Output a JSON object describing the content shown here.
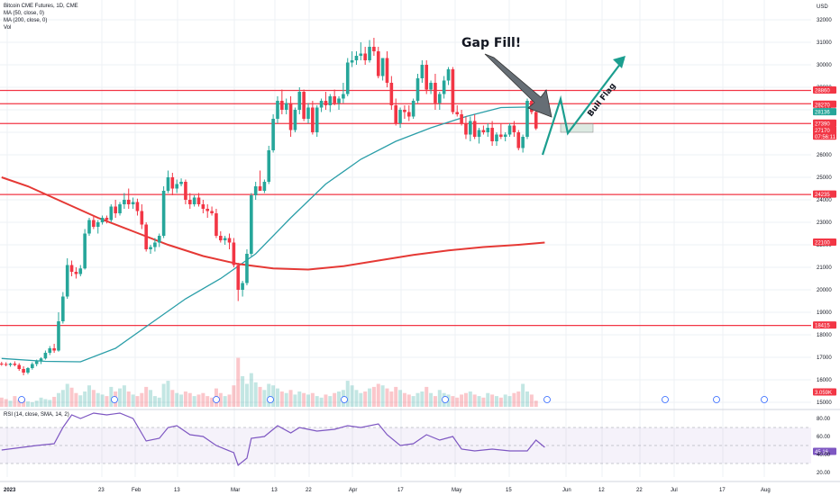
{
  "legend": {
    "symbol": "Bitcoin CME Futures, 1D, CME",
    "ma50": "MA (50, close, 0)",
    "ma200": "MA (200, close, 0)",
    "vol": "Vol",
    "rsi": "RSI (14, close, SMA, 14, 2)"
  },
  "axis": {
    "currency": "USD",
    "price_ticks": [
      "32000",
      "31000",
      "30000",
      "29000",
      "28000",
      "27000",
      "26000",
      "25000",
      "24000",
      "23000",
      "22000",
      "21000",
      "20000",
      "19000",
      "18000",
      "17000",
      "16000",
      "15000"
    ],
    "rsi_ticks": [
      "80.00",
      "60.00",
      "40.00",
      "20.00"
    ],
    "date_ticks": [
      "2023",
      "23",
      "Feb",
      "13",
      "Mar",
      "13",
      "22",
      "Apr",
      "17",
      "May",
      "15",
      "Jun",
      "12",
      "22",
      "Jul",
      "17",
      "Aug"
    ]
  },
  "price_tags": [
    {
      "label": "28860",
      "color": "#f23645"
    },
    {
      "label": "28270",
      "color": "#f23645"
    },
    {
      "label": "28136",
      "color": "#26a69a"
    },
    {
      "label": "27390",
      "color": "#f23645"
    },
    {
      "label": "27170",
      "color": "#f23645"
    },
    {
      "label": "07:56:11",
      "color": "#f23645"
    },
    {
      "label": "24235",
      "color": "#f23645"
    },
    {
      "label": "22100",
      "color": "#f23645"
    },
    {
      "label": "18415",
      "color": "#f23645"
    },
    {
      "label": "3.059K",
      "color": "#f23645"
    },
    {
      "label": "45.16",
      "color": "#7e57c2"
    }
  ],
  "annotations": {
    "gap_fill": "Gap Fill!",
    "bull_flag": "Bull Flag"
  },
  "chart_data": {
    "type": "candlestick",
    "title": "Bitcoin CME Futures, 1D, CME",
    "ylim": [
      15000,
      32600
    ],
    "horizontal_levels": [
      28860,
      28270,
      27390,
      24235,
      18415
    ],
    "candles": [
      {
        "o": 16720,
        "h": 16800,
        "l": 16620,
        "c": 16700
      },
      {
        "o": 16700,
        "h": 16780,
        "l": 16600,
        "c": 16660
      },
      {
        "o": 16660,
        "h": 16760,
        "l": 16580,
        "c": 16720
      },
      {
        "o": 16720,
        "h": 16820,
        "l": 16600,
        "c": 16660
      },
      {
        "o": 16660,
        "h": 16740,
        "l": 16400,
        "c": 16480
      },
      {
        "o": 16480,
        "h": 16600,
        "l": 16200,
        "c": 16320
      },
      {
        "o": 16320,
        "h": 16560,
        "l": 16250,
        "c": 16520
      },
      {
        "o": 16520,
        "h": 16780,
        "l": 16450,
        "c": 16700
      },
      {
        "o": 16700,
        "h": 16900,
        "l": 16600,
        "c": 16820
      },
      {
        "o": 16820,
        "h": 17000,
        "l": 16700,
        "c": 16950
      },
      {
        "o": 16950,
        "h": 17300,
        "l": 16900,
        "c": 17200
      },
      {
        "o": 17200,
        "h": 17500,
        "l": 17100,
        "c": 17400
      },
      {
        "o": 17400,
        "h": 17600,
        "l": 17200,
        "c": 17300
      },
      {
        "o": 17300,
        "h": 19000,
        "l": 17250,
        "c": 18600
      },
      {
        "o": 18600,
        "h": 19900,
        "l": 18500,
        "c": 19700
      },
      {
        "o": 19700,
        "h": 21400,
        "l": 19600,
        "c": 21100
      },
      {
        "o": 21100,
        "h": 21300,
        "l": 20600,
        "c": 20800
      },
      {
        "o": 20800,
        "h": 21000,
        "l": 20500,
        "c": 20700
      },
      {
        "o": 20700,
        "h": 21100,
        "l": 20600,
        "c": 20950
      },
      {
        "o": 20950,
        "h": 22700,
        "l": 20900,
        "c": 22500
      },
      {
        "o": 22500,
        "h": 23200,
        "l": 22400,
        "c": 23100
      },
      {
        "o": 23100,
        "h": 23300,
        "l": 22700,
        "c": 22800
      },
      {
        "o": 22800,
        "h": 23100,
        "l": 22500,
        "c": 23000
      },
      {
        "o": 23000,
        "h": 23300,
        "l": 22900,
        "c": 23200
      },
      {
        "o": 23200,
        "h": 23300,
        "l": 22950,
        "c": 23100
      },
      {
        "o": 23100,
        "h": 23800,
        "l": 23000,
        "c": 23700
      },
      {
        "o": 23700,
        "h": 24000,
        "l": 23200,
        "c": 23400
      },
      {
        "o": 23400,
        "h": 23900,
        "l": 23300,
        "c": 23800
      },
      {
        "o": 23800,
        "h": 24300,
        "l": 23600,
        "c": 24000
      },
      {
        "o": 24000,
        "h": 24500,
        "l": 23600,
        "c": 23800
      },
      {
        "o": 23800,
        "h": 24100,
        "l": 23600,
        "c": 23900
      },
      {
        "o": 23900,
        "h": 24050,
        "l": 23300,
        "c": 23500
      },
      {
        "o": 23500,
        "h": 23800,
        "l": 22700,
        "c": 22900
      },
      {
        "o": 22900,
        "h": 23000,
        "l": 21700,
        "c": 21800
      },
      {
        "o": 21800,
        "h": 22000,
        "l": 21600,
        "c": 21900
      },
      {
        "o": 21900,
        "h": 22300,
        "l": 21700,
        "c": 22100
      },
      {
        "o": 22100,
        "h": 22500,
        "l": 21900,
        "c": 22400
      },
      {
        "o": 22400,
        "h": 24600,
        "l": 22300,
        "c": 24400
      },
      {
        "o": 24400,
        "h": 25300,
        "l": 24300,
        "c": 25000
      },
      {
        "o": 25000,
        "h": 25200,
        "l": 24200,
        "c": 24500
      },
      {
        "o": 24500,
        "h": 24900,
        "l": 24300,
        "c": 24700
      },
      {
        "o": 24700,
        "h": 24950,
        "l": 24600,
        "c": 24800
      },
      {
        "o": 24800,
        "h": 24900,
        "l": 23800,
        "c": 24000
      },
      {
        "o": 24000,
        "h": 24300,
        "l": 23600,
        "c": 23800
      },
      {
        "o": 23800,
        "h": 24200,
        "l": 23700,
        "c": 24100
      },
      {
        "o": 24100,
        "h": 24300,
        "l": 23700,
        "c": 23800
      },
      {
        "o": 23800,
        "h": 24000,
        "l": 23400,
        "c": 23600
      },
      {
        "o": 23600,
        "h": 23800,
        "l": 23200,
        "c": 23500
      },
      {
        "o": 23500,
        "h": 23700,
        "l": 23300,
        "c": 23400
      },
      {
        "o": 23400,
        "h": 23600,
        "l": 22300,
        "c": 22400
      },
      {
        "o": 22400,
        "h": 22600,
        "l": 22100,
        "c": 22200
      },
      {
        "o": 22200,
        "h": 22400,
        "l": 22000,
        "c": 22300
      },
      {
        "o": 22300,
        "h": 22500,
        "l": 21800,
        "c": 22100
      },
      {
        "o": 22100,
        "h": 22300,
        "l": 21000,
        "c": 21100
      },
      {
        "o": 21100,
        "h": 21200,
        "l": 19500,
        "c": 20000
      },
      {
        "o": 20000,
        "h": 20400,
        "l": 19700,
        "c": 20300
      },
      {
        "o": 20300,
        "h": 21800,
        "l": 20200,
        "c": 21600
      },
      {
        "o": 21600,
        "h": 24300,
        "l": 21500,
        "c": 24200
      },
      {
        "o": 24200,
        "h": 24800,
        "l": 24000,
        "c": 24600
      },
      {
        "o": 24600,
        "h": 25300,
        "l": 24400,
        "c": 24400
      },
      {
        "o": 24400,
        "h": 24900,
        "l": 24300,
        "c": 24800
      },
      {
        "o": 24800,
        "h": 26400,
        "l": 24700,
        "c": 26200
      },
      {
        "o": 26200,
        "h": 27800,
        "l": 26100,
        "c": 27600
      },
      {
        "o": 27600,
        "h": 28600,
        "l": 27400,
        "c": 28400
      },
      {
        "o": 28400,
        "h": 28900,
        "l": 27800,
        "c": 28000
      },
      {
        "o": 28000,
        "h": 28500,
        "l": 27800,
        "c": 28300
      },
      {
        "o": 28300,
        "h": 28600,
        "l": 26800,
        "c": 27100
      },
      {
        "o": 27100,
        "h": 28100,
        "l": 27000,
        "c": 28000
      },
      {
        "o": 28000,
        "h": 29000,
        "l": 27800,
        "c": 28800
      },
      {
        "o": 28800,
        "h": 28900,
        "l": 27500,
        "c": 27600
      },
      {
        "o": 27600,
        "h": 28300,
        "l": 27400,
        "c": 28100
      },
      {
        "o": 28100,
        "h": 28400,
        "l": 26900,
        "c": 27000
      },
      {
        "o": 27000,
        "h": 28200,
        "l": 26800,
        "c": 28100
      },
      {
        "o": 28100,
        "h": 28500,
        "l": 27900,
        "c": 28400
      },
      {
        "o": 28400,
        "h": 28800,
        "l": 28000,
        "c": 28200
      },
      {
        "o": 28200,
        "h": 28700,
        "l": 27900,
        "c": 28600
      },
      {
        "o": 28600,
        "h": 28900,
        "l": 28200,
        "c": 28300
      },
      {
        "o": 28300,
        "h": 28600,
        "l": 28000,
        "c": 28500
      },
      {
        "o": 28500,
        "h": 29200,
        "l": 28300,
        "c": 28700
      },
      {
        "o": 28700,
        "h": 30300,
        "l": 28600,
        "c": 30100
      },
      {
        "o": 30100,
        "h": 30600,
        "l": 29900,
        "c": 30200
      },
      {
        "o": 30200,
        "h": 30600,
        "l": 30000,
        "c": 30400
      },
      {
        "o": 30400,
        "h": 31000,
        "l": 30200,
        "c": 30500
      },
      {
        "o": 30500,
        "h": 30800,
        "l": 30000,
        "c": 30200
      },
      {
        "o": 30200,
        "h": 31100,
        "l": 30100,
        "c": 30800
      },
      {
        "o": 30800,
        "h": 31200,
        "l": 30400,
        "c": 30600
      },
      {
        "o": 30600,
        "h": 30800,
        "l": 29400,
        "c": 29500
      },
      {
        "o": 29500,
        "h": 30300,
        "l": 29300,
        "c": 30300
      },
      {
        "o": 30300,
        "h": 30600,
        "l": 29000,
        "c": 29200
      },
      {
        "o": 29200,
        "h": 29500,
        "l": 28000,
        "c": 28200
      },
      {
        "o": 28200,
        "h": 28500,
        "l": 27300,
        "c": 27400
      },
      {
        "o": 27400,
        "h": 28100,
        "l": 27200,
        "c": 28000
      },
      {
        "o": 28000,
        "h": 28200,
        "l": 27600,
        "c": 27900
      },
      {
        "o": 27900,
        "h": 28200,
        "l": 27500,
        "c": 27700
      },
      {
        "o": 27700,
        "h": 28500,
        "l": 27600,
        "c": 28400
      },
      {
        "o": 28400,
        "h": 29600,
        "l": 28300,
        "c": 29400
      },
      {
        "o": 29400,
        "h": 30200,
        "l": 29200,
        "c": 30000
      },
      {
        "o": 30000,
        "h": 30200,
        "l": 28700,
        "c": 28900
      },
      {
        "o": 28900,
        "h": 29300,
        "l": 28700,
        "c": 29200
      },
      {
        "o": 29200,
        "h": 29600,
        "l": 28000,
        "c": 28300
      },
      {
        "o": 28300,
        "h": 28800,
        "l": 28000,
        "c": 28700
      },
      {
        "o": 28700,
        "h": 29500,
        "l": 28500,
        "c": 29300
      },
      {
        "o": 29300,
        "h": 29900,
        "l": 29100,
        "c": 29800
      },
      {
        "o": 29800,
        "h": 29900,
        "l": 27800,
        "c": 27900
      },
      {
        "o": 27900,
        "h": 28200,
        "l": 27700,
        "c": 27800
      },
      {
        "o": 27800,
        "h": 28000,
        "l": 27300,
        "c": 27400
      },
      {
        "o": 27400,
        "h": 27700,
        "l": 26700,
        "c": 26900
      },
      {
        "o": 26900,
        "h": 27700,
        "l": 26600,
        "c": 27500
      },
      {
        "o": 27500,
        "h": 27800,
        "l": 26700,
        "c": 26800
      },
      {
        "o": 26800,
        "h": 27200,
        "l": 26500,
        "c": 27100
      },
      {
        "o": 27100,
        "h": 27300,
        "l": 26900,
        "c": 27000
      },
      {
        "o": 27000,
        "h": 27400,
        "l": 26800,
        "c": 27200
      },
      {
        "o": 27200,
        "h": 27500,
        "l": 26400,
        "c": 26600
      },
      {
        "o": 26600,
        "h": 27000,
        "l": 26400,
        "c": 26900
      },
      {
        "o": 26900,
        "h": 27400,
        "l": 26700,
        "c": 26800
      },
      {
        "o": 26800,
        "h": 27000,
        "l": 26600,
        "c": 26900
      },
      {
        "o": 26900,
        "h": 27400,
        "l": 26800,
        "c": 27300
      },
      {
        "o": 27300,
        "h": 27500,
        "l": 26800,
        "c": 27000
      },
      {
        "o": 27000,
        "h": 27100,
        "l": 26200,
        "c": 26300
      },
      {
        "o": 26300,
        "h": 26900,
        "l": 26100,
        "c": 26800
      },
      {
        "o": 26800,
        "h": 28500,
        "l": 26700,
        "c": 28400
      },
      {
        "o": 28400,
        "h": 28700,
        "l": 27800,
        "c": 27900
      },
      {
        "o": 27900,
        "h": 28100,
        "l": 27100,
        "c": 27170
      }
    ],
    "ma50": [
      {
        "i": 0,
        "v": 16950
      },
      {
        "i": 10,
        "v": 16820
      },
      {
        "i": 18,
        "v": 16800
      },
      {
        "i": 26,
        "v": 17400
      },
      {
        "i": 34,
        "v": 18500
      },
      {
        "i": 42,
        "v": 19600
      },
      {
        "i": 50,
        "v": 20500
      },
      {
        "i": 58,
        "v": 21600
      },
      {
        "i": 66,
        "v": 23200
      },
      {
        "i": 74,
        "v": 24700
      },
      {
        "i": 82,
        "v": 25800
      },
      {
        "i": 90,
        "v": 26600
      },
      {
        "i": 98,
        "v": 27200
      },
      {
        "i": 106,
        "v": 27700
      },
      {
        "i": 114,
        "v": 28100
      },
      {
        "i": 124,
        "v": 28136
      }
    ],
    "ma200": [
      {
        "i": 0,
        "v": 25000
      },
      {
        "i": 6,
        "v": 24600
      },
      {
        "i": 14,
        "v": 23900
      },
      {
        "i": 22,
        "v": 23200
      },
      {
        "i": 30,
        "v": 22600
      },
      {
        "i": 38,
        "v": 22000
      },
      {
        "i": 46,
        "v": 21500
      },
      {
        "i": 54,
        "v": 21150
      },
      {
        "i": 62,
        "v": 20950
      },
      {
        "i": 70,
        "v": 20900
      },
      {
        "i": 78,
        "v": 21050
      },
      {
        "i": 86,
        "v": 21300
      },
      {
        "i": 94,
        "v": 21550
      },
      {
        "i": 102,
        "v": 21750
      },
      {
        "i": 110,
        "v": 21900
      },
      {
        "i": 118,
        "v": 22000
      },
      {
        "i": 124,
        "v": 22100
      }
    ],
    "volume_max": 100,
    "volume": [
      12,
      10,
      8,
      14,
      9,
      11,
      7,
      6,
      8,
      12,
      10,
      9,
      13,
      18,
      22,
      30,
      25,
      18,
      15,
      20,
      28,
      22,
      18,
      16,
      14,
      26,
      20,
      24,
      28,
      20,
      16,
      14,
      18,
      26,
      22,
      14,
      12,
      30,
      34,
      22,
      18,
      16,
      20,
      18,
      14,
      16,
      18,
      14,
      12,
      24,
      18,
      14,
      16,
      28,
      64,
      40,
      30,
      44,
      32,
      26,
      22,
      30,
      28,
      24,
      20,
      18,
      22,
      16,
      20,
      18,
      16,
      18,
      14,
      12,
      16,
      14,
      18,
      20,
      22,
      34,
      28,
      22,
      18,
      20,
      24,
      26,
      30,
      28,
      24,
      20,
      26,
      22,
      18,
      16,
      14,
      18,
      20,
      26,
      18,
      14,
      22,
      18,
      16,
      14,
      12,
      16,
      18,
      20,
      16,
      14,
      12,
      18,
      16,
      14,
      12,
      16,
      14,
      18,
      20,
      30,
      20,
      16,
      8
    ],
    "rsi": [
      {
        "i": 0,
        "v": 45
      },
      {
        "i": 8,
        "v": 50
      },
      {
        "i": 12,
        "v": 52
      },
      {
        "i": 14,
        "v": 70
      },
      {
        "i": 16,
        "v": 84
      },
      {
        "i": 18,
        "v": 80
      },
      {
        "i": 21,
        "v": 86
      },
      {
        "i": 24,
        "v": 84
      },
      {
        "i": 27,
        "v": 86
      },
      {
        "i": 30,
        "v": 80
      },
      {
        "i": 33,
        "v": 55
      },
      {
        "i": 36,
        "v": 58
      },
      {
        "i": 38,
        "v": 70
      },
      {
        "i": 40,
        "v": 72
      },
      {
        "i": 43,
        "v": 62
      },
      {
        "i": 46,
        "v": 60
      },
      {
        "i": 49,
        "v": 50
      },
      {
        "i": 53,
        "v": 42
      },
      {
        "i": 54,
        "v": 28
      },
      {
        "i": 56,
        "v": 36
      },
      {
        "i": 57,
        "v": 58
      },
      {
        "i": 60,
        "v": 60
      },
      {
        "i": 63,
        "v": 72
      },
      {
        "i": 66,
        "v": 64
      },
      {
        "i": 68,
        "v": 70
      },
      {
        "i": 72,
        "v": 66
      },
      {
        "i": 76,
        "v": 68
      },
      {
        "i": 79,
        "v": 72
      },
      {
        "i": 82,
        "v": 70
      },
      {
        "i": 86,
        "v": 74
      },
      {
        "i": 88,
        "v": 62
      },
      {
        "i": 91,
        "v": 50
      },
      {
        "i": 94,
        "v": 52
      },
      {
        "i": 97,
        "v": 62
      },
      {
        "i": 100,
        "v": 56
      },
      {
        "i": 103,
        "v": 60
      },
      {
        "i": 105,
        "v": 46
      },
      {
        "i": 108,
        "v": 44
      },
      {
        "i": 112,
        "v": 46
      },
      {
        "i": 116,
        "v": 44
      },
      {
        "i": 120,
        "v": 44
      },
      {
        "i": 122,
        "v": 56
      },
      {
        "i": 124,
        "v": 48
      }
    ],
    "rsi_ma_level": 45.16,
    "rsi_bands": [
      70,
      30
    ]
  }
}
